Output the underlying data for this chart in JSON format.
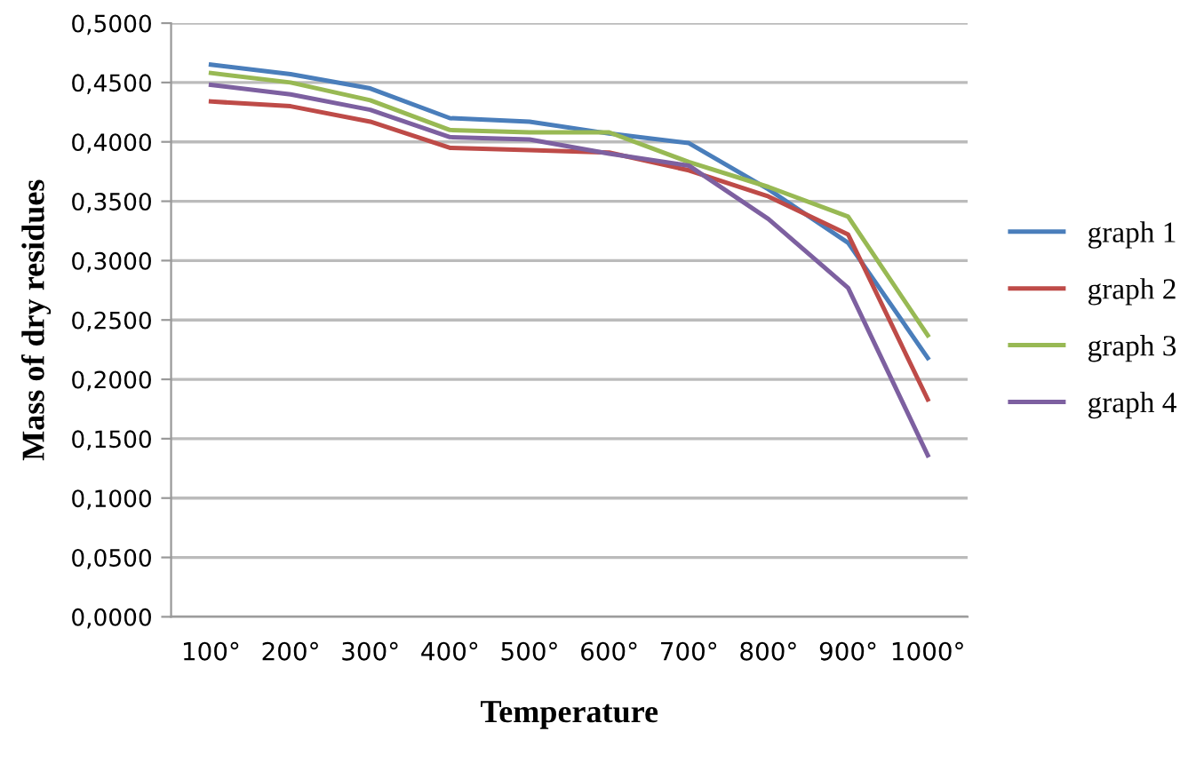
{
  "chart_data": {
    "type": "line",
    "xlabel": "Temperature",
    "ylabel": "Mass of dry residues",
    "categories": [
      "100°",
      "200°",
      "300°",
      "400°",
      "500°",
      "600°",
      "700°",
      "800°",
      "900°",
      "1000°"
    ],
    "ylim": [
      0,
      0.5
    ],
    "yticks": [
      {
        "value": 0,
        "label": "0,0000"
      },
      {
        "value": 0.05,
        "label": "0,0500"
      },
      {
        "value": 0.1,
        "label": "0,1000"
      },
      {
        "value": 0.15,
        "label": "0,1500"
      },
      {
        "value": 0.2,
        "label": "0,2000"
      },
      {
        "value": 0.25,
        "label": "0,2500"
      },
      {
        "value": 0.3,
        "label": "0,3000"
      },
      {
        "value": 0.35,
        "label": "0,3500"
      },
      {
        "value": 0.4,
        "label": "0,4000"
      },
      {
        "value": 0.45,
        "label": "0,4500"
      },
      {
        "value": 0.5,
        "label": "0,5000"
      }
    ],
    "grid": "y",
    "legend": "right",
    "marker": "none",
    "line_style": "solid",
    "series": [
      {
        "name": "graph 1",
        "color": "#4a7ebb",
        "values": [
          0.465,
          0.457,
          0.445,
          0.42,
          0.417,
          0.407,
          0.399,
          0.36,
          0.315,
          0.218
        ]
      },
      {
        "name": "graph 2",
        "color": "#be4b48",
        "values": [
          0.434,
          0.43,
          0.417,
          0.395,
          0.393,
          0.391,
          0.376,
          0.354,
          0.322,
          0.183
        ]
      },
      {
        "name": "graph 3",
        "color": "#98b954",
        "values": [
          0.458,
          0.45,
          0.435,
          0.41,
          0.408,
          0.408,
          0.383,
          0.362,
          0.337,
          0.237
        ]
      },
      {
        "name": "graph 4",
        "color": "#7d60a0",
        "values": [
          0.448,
          0.44,
          0.427,
          0.404,
          0.402,
          0.39,
          0.38,
          0.335,
          0.277,
          0.136
        ]
      }
    ]
  }
}
